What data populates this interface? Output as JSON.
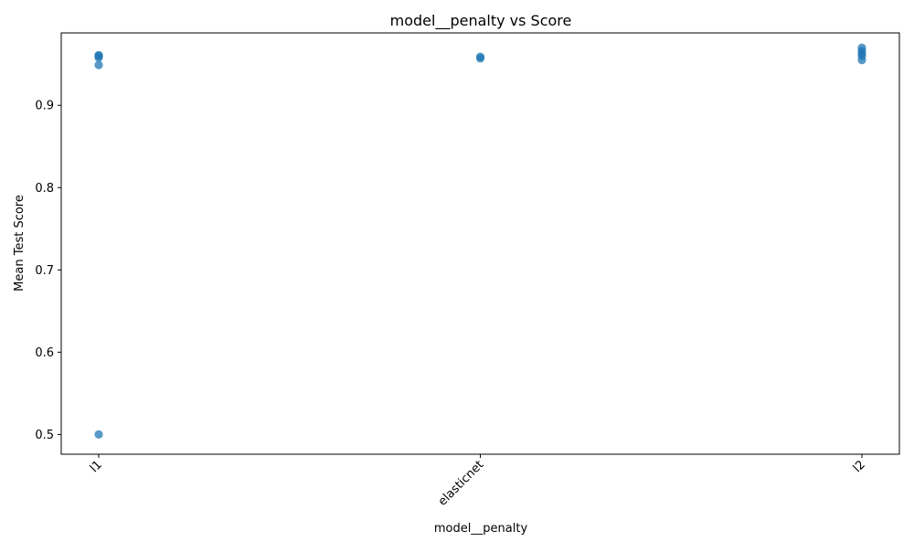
{
  "chart_data": {
    "type": "scatter",
    "title": "model__penalty vs Score",
    "xlabel": "model__penalty",
    "ylabel": "Mean Test Score",
    "categories": [
      "l1",
      "elasticnet",
      "l2"
    ],
    "ylim": [
      0.476,
      0.988
    ],
    "yticks": [
      0.5,
      0.6,
      0.7,
      0.8,
      0.9
    ],
    "yticklabels": [
      "0.5",
      "0.6",
      "0.7",
      "0.8",
      "0.9"
    ],
    "grid": false,
    "legend": "none",
    "marker_color": "#1f77b4",
    "points": [
      {
        "x": "l1",
        "y": 0.5
      },
      {
        "x": "l1",
        "y": 0.949
      },
      {
        "x": "l1",
        "y": 0.958
      },
      {
        "x": "l1",
        "y": 0.96
      },
      {
        "x": "l1",
        "y": 0.961
      },
      {
        "x": "elasticnet",
        "y": 0.957
      },
      {
        "x": "elasticnet",
        "y": 0.959
      },
      {
        "x": "l2",
        "y": 0.955
      },
      {
        "x": "l2",
        "y": 0.96
      },
      {
        "x": "l2",
        "y": 0.963
      },
      {
        "x": "l2",
        "y": 0.966
      },
      {
        "x": "l2",
        "y": 0.97
      }
    ]
  }
}
